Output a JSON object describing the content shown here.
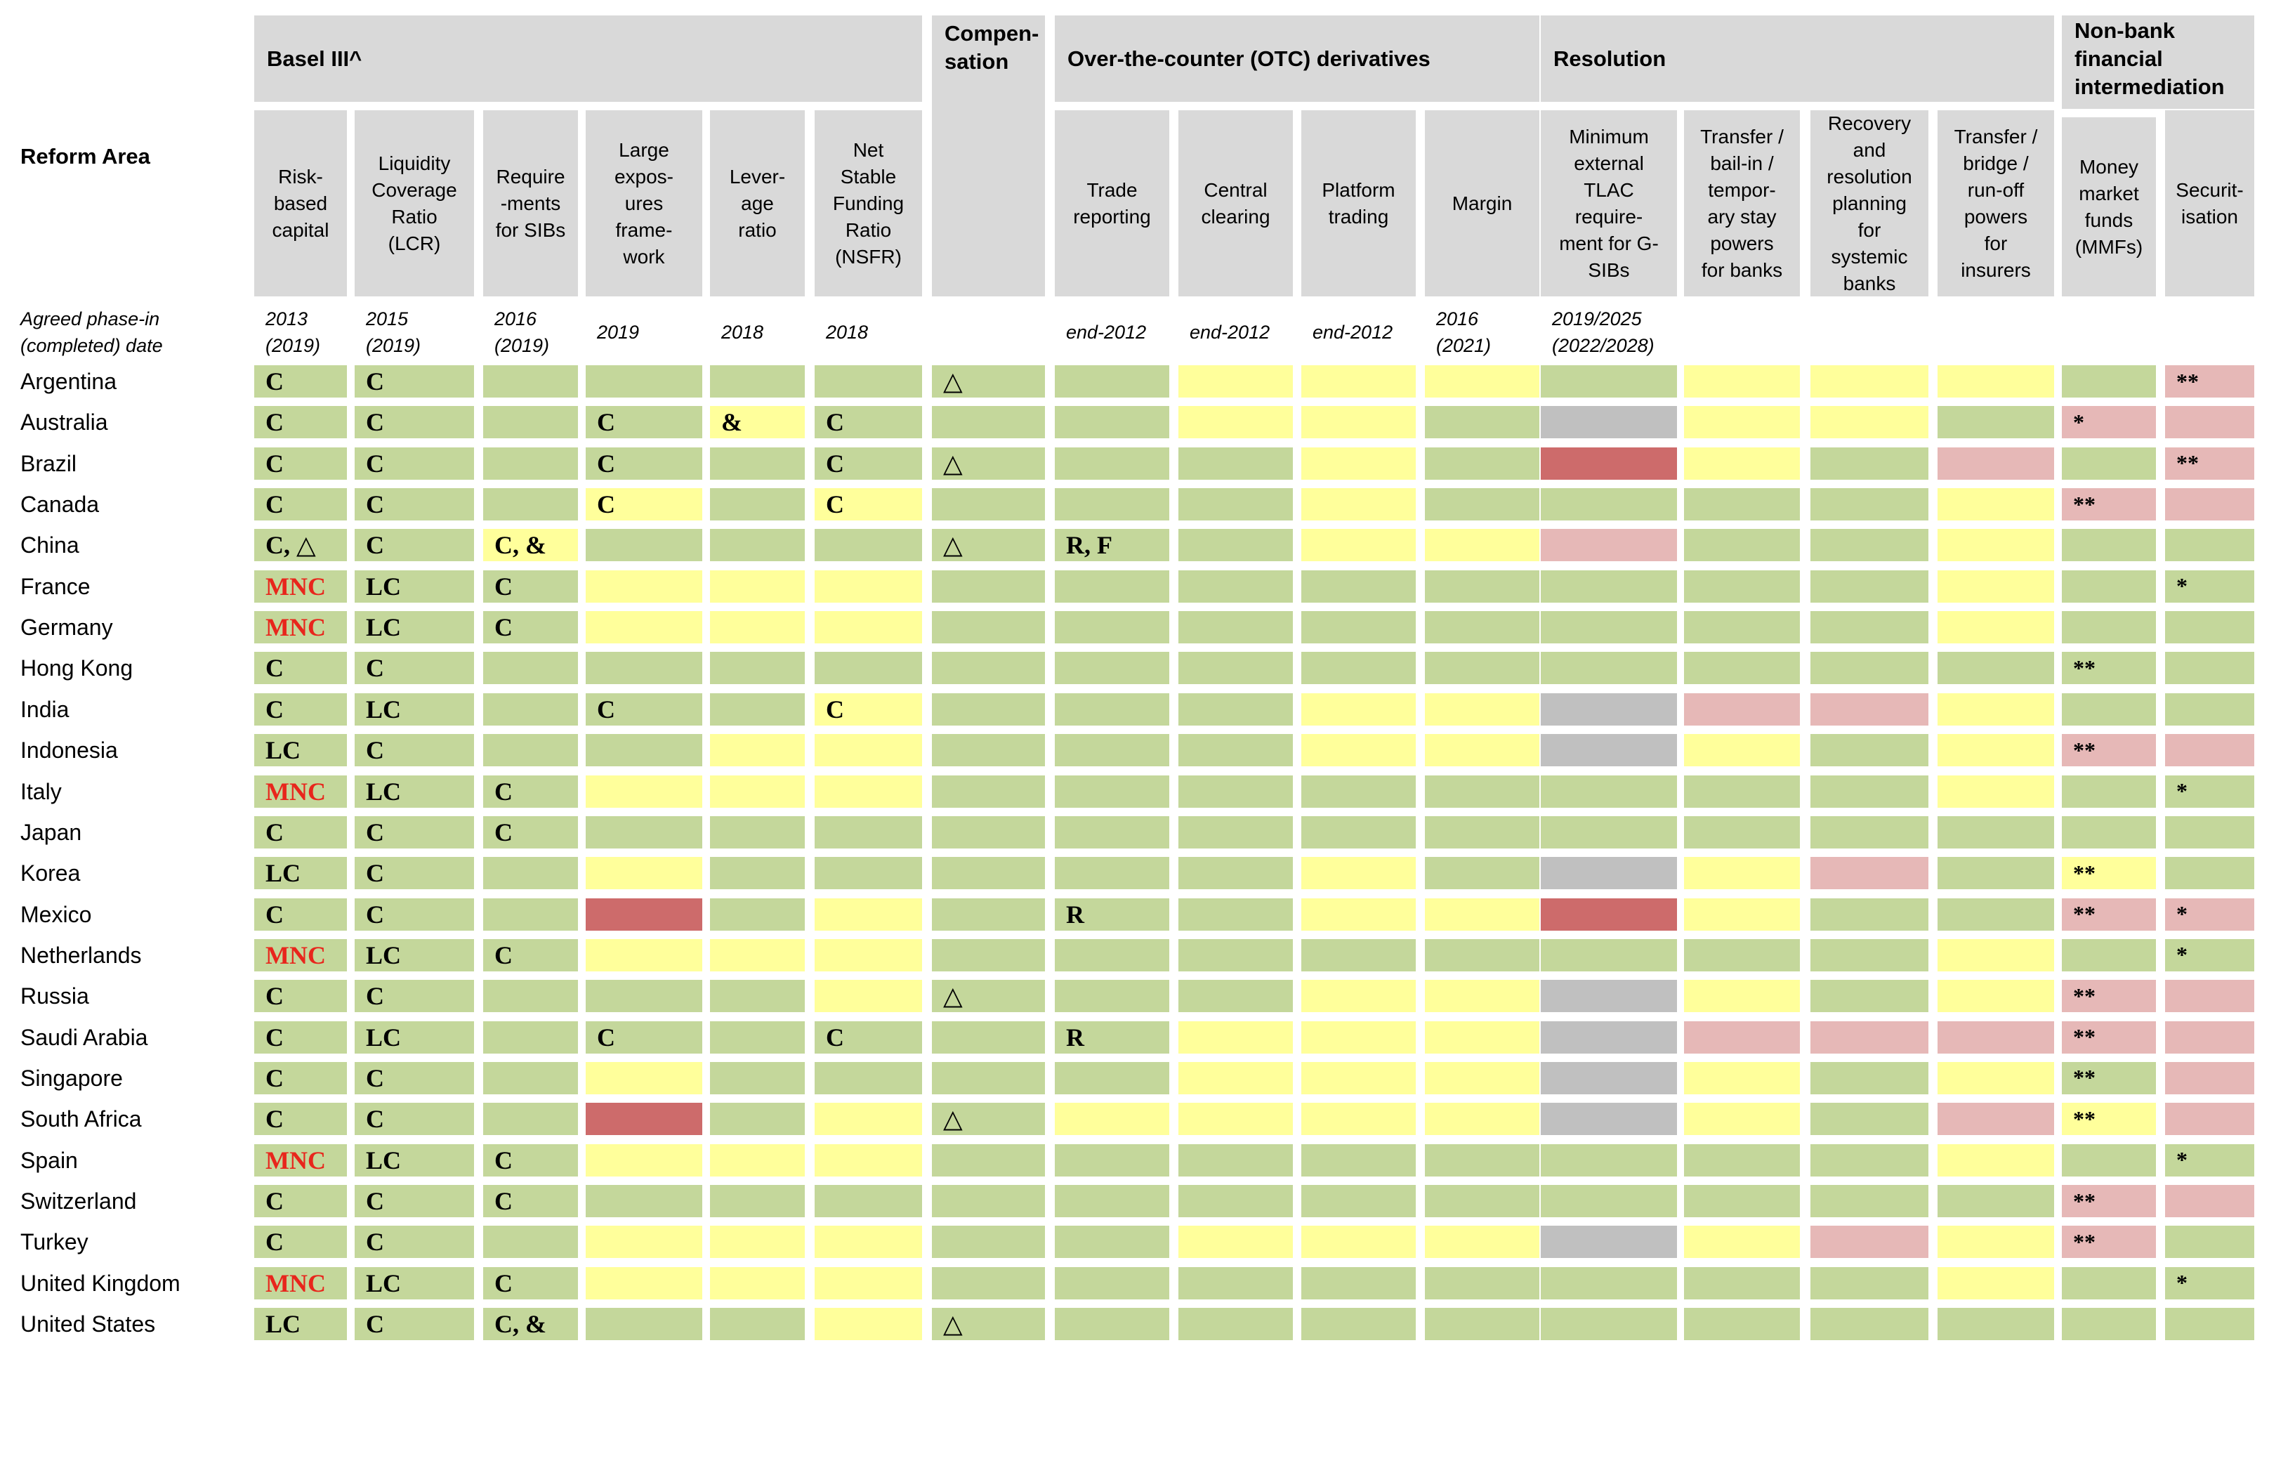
{
  "colors": {
    "green": "#c4d79b",
    "yellow": "#ffff9b",
    "pink": "#e6b8b7",
    "red": "#cd6b6b",
    "grey": "#c0c0c0",
    "header": "#d9d9d9",
    "mnc_text": "#e8261c"
  },
  "header": {
    "reform_area": "Reform Area",
    "phase_label": "Agreed phase-in\n(completed) date",
    "groups": [
      {
        "label": "Basel III^",
        "cols": [
          0,
          5
        ]
      },
      {
        "label": "Compen-\nsation",
        "cols": [
          6,
          6
        ]
      },
      {
        "label": "Over-the-counter (OTC) derivatives",
        "cols": [
          7,
          10
        ]
      },
      {
        "label": "Resolution",
        "cols": [
          11,
          14
        ]
      },
      {
        "label": "Non-bank\nfinancial\nintermediation",
        "cols": [
          15,
          16
        ]
      }
    ],
    "columns": [
      {
        "label": "Risk-\nbased\ncapital",
        "date": "2013\n(2019)"
      },
      {
        "label": "Liquidity\nCoverage\nRatio\n(LCR)",
        "date": "2015\n(2019)"
      },
      {
        "label": "Require\n-ments\nfor SIBs",
        "date": "2016\n(2019)"
      },
      {
        "label": "Large\nexpos-\nures\nframe-\nwork",
        "date": "2019"
      },
      {
        "label": "Lever-\nage\nratio",
        "date": "2018"
      },
      {
        "label": "Net\nStable\nFunding\nRatio\n(NSFR)",
        "date": "2018"
      },
      {
        "label": "",
        "date": ""
      },
      {
        "label": "Trade\nreporting",
        "date": "end-2012"
      },
      {
        "label": "Central\nclearing",
        "date": "end-2012"
      },
      {
        "label": "Platform\ntrading",
        "date": "end-2012"
      },
      {
        "label": "Margin",
        "date": "2016\n(2021)"
      },
      {
        "label": "Minimum\nexternal\nTLAC\nrequire-\nment for G-\nSIBs",
        "date": "2019/2025\n(2022/2028)"
      },
      {
        "label": "Transfer /\nbail-in /\ntempor-\nary stay\npowers\nfor banks",
        "date": ""
      },
      {
        "label": "Recovery\nand\nresolution\nplanning\nfor\nsystemic\nbanks",
        "date": ""
      },
      {
        "label": "Transfer /\nbridge /\nrun-off\npowers\nfor\ninsurers",
        "date": ""
      },
      {
        "label": "Money\nmarket\nfunds\n(MMFs)",
        "date": ""
      },
      {
        "label": "Securit-\nisation",
        "date": ""
      }
    ]
  },
  "rows": [
    {
      "country": "Argentina",
      "colors": "GGGGGGGGYYYGYYYGP",
      "marks": {
        "0": "C",
        "1": "C",
        "6": "△",
        "16": "**"
      }
    },
    {
      "country": "Australia",
      "colors": "GGGGYGGGYYGXYYGPP",
      "marks": {
        "0": "C",
        "1": "C",
        "3": "C",
        "4": "&",
        "5": "C",
        "15": "*"
      }
    },
    {
      "country": "Brazil",
      "colors": "GGGGGGGGGYGRYGPGP",
      "marks": {
        "0": "C",
        "1": "C",
        "3": "C",
        "5": "C",
        "6": "△",
        "16": "**"
      }
    },
    {
      "country": "Canada",
      "colors": "GGGYGYGGGYGGGGYPP",
      "marks": {
        "0": "C",
        "1": "C",
        "3": "C",
        "5": "C",
        "15": "**"
      }
    },
    {
      "country": "China",
      "colors": "GGYGGGGGGYYPGGYGG",
      "marks": {
        "0": "C, △",
        "1": "C",
        "2": "C, &",
        "6": "△",
        "7": "R, F"
      }
    },
    {
      "country": "France",
      "colors": "GGGYYYGGGGGGGGYGG",
      "marks": {
        "0": "MNC",
        "1": "LC",
        "2": "C",
        "16": "*"
      }
    },
    {
      "country": "Germany",
      "colors": "GGGYYYGGGGGGGGYGG",
      "marks": {
        "0": "MNC",
        "1": "LC",
        "2": "C"
      }
    },
    {
      "country": "Hong Kong",
      "colors": "GGGGGGGGGGGGGGGGG",
      "marks": {
        "0": "C",
        "1": "C",
        "15": "**"
      }
    },
    {
      "country": "India",
      "colors": "GGGGGYGGGYYXPPYGG",
      "marks": {
        "0": "C",
        "1": "LC",
        "3": "C",
        "5": "C"
      }
    },
    {
      "country": "Indonesia",
      "colors": "GGGGYYGGGYYXYGYPP",
      "marks": {
        "0": "LC",
        "1": "C",
        "15": "**"
      }
    },
    {
      "country": "Italy",
      "colors": "GGGYYYGGGGGGGGYGG",
      "marks": {
        "0": "MNC",
        "1": "LC",
        "2": "C",
        "16": "*"
      }
    },
    {
      "country": "Japan",
      "colors": "GGGGGGGGGGGGGGGGG",
      "marks": {
        "0": "C",
        "1": "C",
        "2": "C"
      }
    },
    {
      "country": "Korea",
      "colors": "GGGYGGGGGYGXYPGYG",
      "marks": {
        "0": "LC",
        "1": "C",
        "15": "**"
      }
    },
    {
      "country": "Mexico",
      "colors": "GGGRGYGGGYYRYGGPP",
      "marks": {
        "0": "C",
        "1": "C",
        "7": "R",
        "15": "**",
        "16": "*"
      }
    },
    {
      "country": "Netherlands",
      "colors": "GGGYYYGGGGGGGGYGG",
      "marks": {
        "0": "MNC",
        "1": "LC",
        "2": "C",
        "16": "*"
      }
    },
    {
      "country": "Russia",
      "colors": "GGGGGYGGGYYXYGYPP",
      "marks": {
        "0": "C",
        "1": "C",
        "6": "△",
        "15": "**"
      }
    },
    {
      "country": "Saudi Arabia",
      "colors": "GGGGGGGGYYYXPPPPP",
      "marks": {
        "0": "C",
        "1": "LC",
        "3": "C",
        "5": "C",
        "7": "R",
        "15": "**"
      }
    },
    {
      "country": "Singapore",
      "colors": "GGGYGGGGYYYXYGYGP",
      "marks": {
        "0": "C",
        "1": "C",
        "15": "**"
      }
    },
    {
      "country": "South Africa",
      "colors": "GGGRGYGYYYYXYGPYP",
      "marks": {
        "0": "C",
        "1": "C",
        "6": "△",
        "15": "**"
      }
    },
    {
      "country": "Spain",
      "colors": "GGGYYYGGGGGGGGYGG",
      "marks": {
        "0": "MNC",
        "1": "LC",
        "2": "C",
        "16": "*"
      }
    },
    {
      "country": "Switzerland",
      "colors": "GGGGGGGGGGGGGGGPP",
      "marks": {
        "0": "C",
        "1": "C",
        "2": "C",
        "15": "**"
      }
    },
    {
      "country": "Turkey",
      "colors": "GGGYYYGGYYYXYPYPG",
      "marks": {
        "0": "C",
        "1": "C",
        "15": "**"
      }
    },
    {
      "country": "United Kingdom",
      "colors": "GGGYYYGGGGGGGGYGG",
      "marks": {
        "0": "MNC",
        "1": "LC",
        "2": "C",
        "16": "*"
      }
    },
    {
      "country": "United States",
      "colors": "GGGGGYGGGGGGGGGGG",
      "marks": {
        "0": "LC",
        "1": "C",
        "2": "C, &",
        "6": "△"
      }
    }
  ]
}
